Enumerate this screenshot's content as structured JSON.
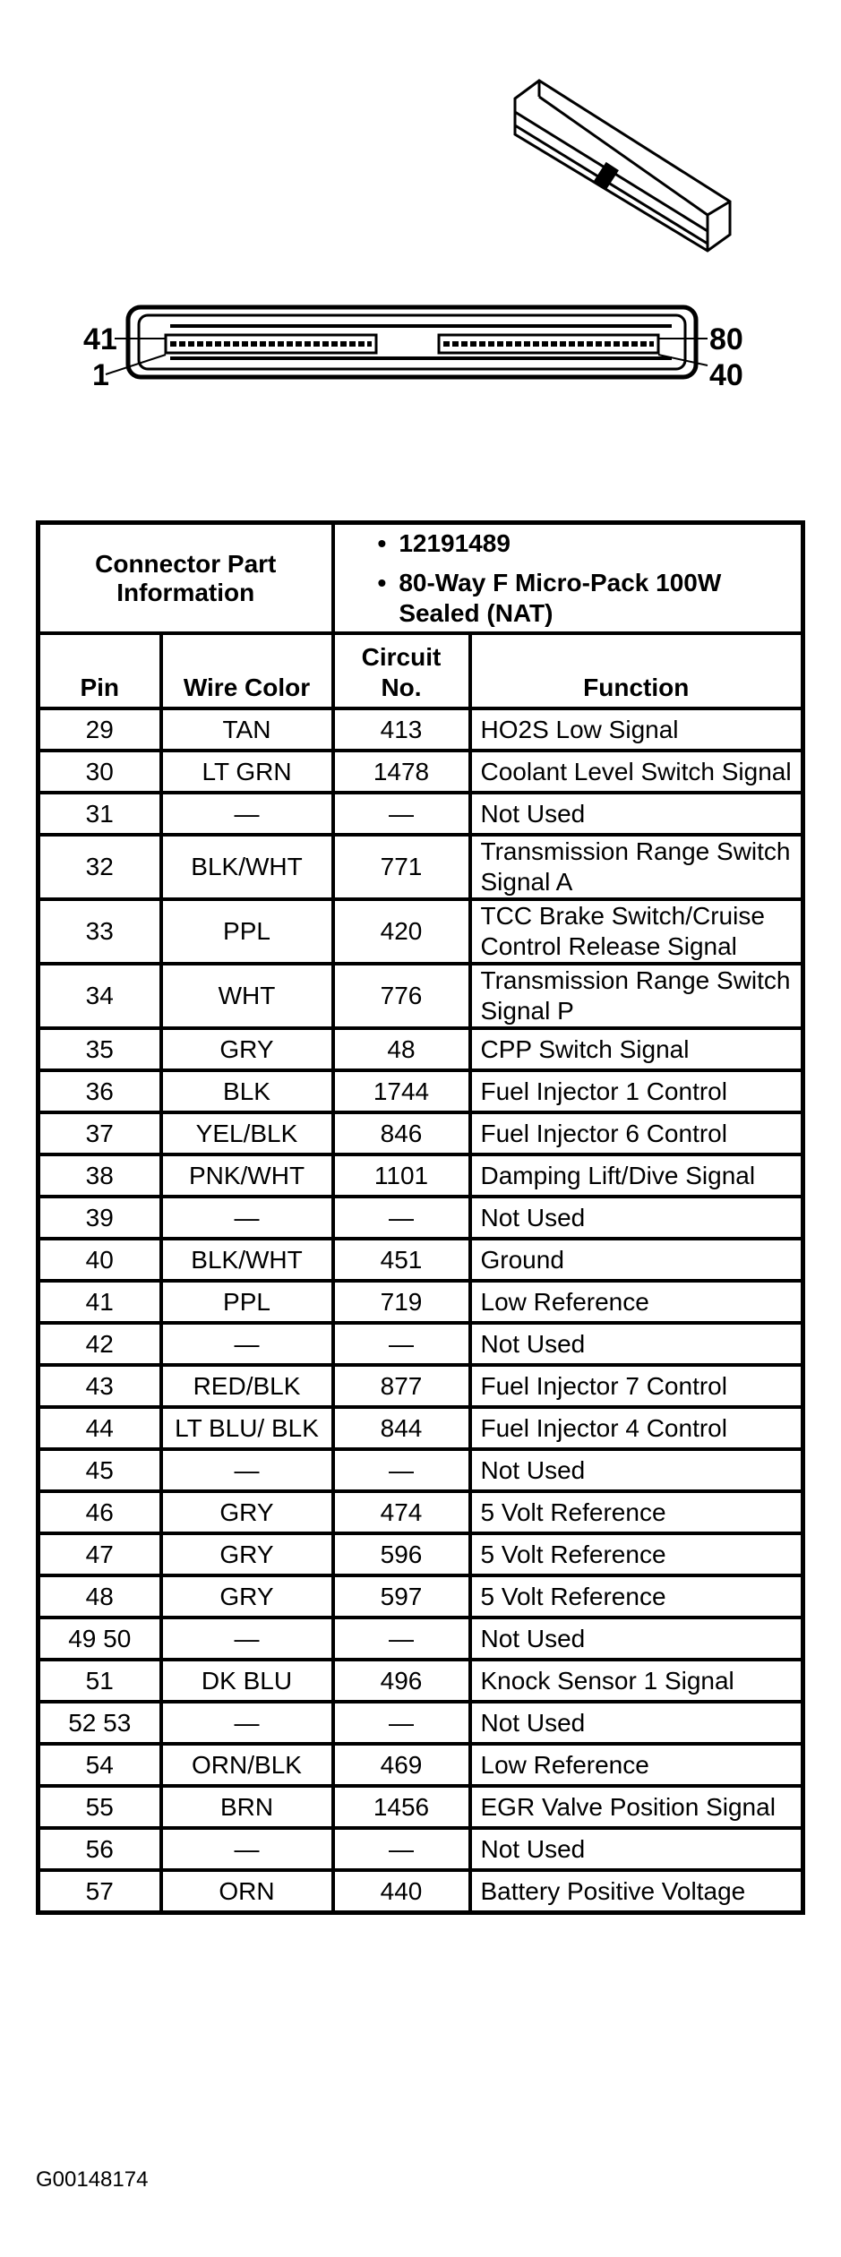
{
  "connector_labels": {
    "top_left": "41",
    "bottom_left": "1",
    "top_right": "80",
    "bottom_right": "40"
  },
  "info": {
    "label": "Connector Part Information",
    "bullets": [
      "12191489",
      "80-Way F Micro-Pack 100W Sealed (NAT)"
    ]
  },
  "columns": {
    "pin": "Pin",
    "wire": "Wire Color",
    "circuit": "Circuit No.",
    "function": "Function"
  },
  "rows": [
    {
      "pin": "29",
      "wire": "TAN",
      "circuit": "413",
      "function": "HO2S Low Signal"
    },
    {
      "pin": "30",
      "wire": "LT GRN",
      "circuit": "1478",
      "function": "Coolant Level Switch Signal"
    },
    {
      "pin": "31",
      "wire": "—",
      "circuit": "—",
      "function": "Not Used"
    },
    {
      "pin": "32",
      "wire": "BLK/WHT",
      "circuit": "771",
      "function": "Transmission Range Switch Signal A"
    },
    {
      "pin": "33",
      "wire": "PPL",
      "circuit": "420",
      "function": "TCC Brake Switch/Cruise Control Release Signal"
    },
    {
      "pin": "34",
      "wire": "WHT",
      "circuit": "776",
      "function": "Transmission Range Switch Signal P"
    },
    {
      "pin": "35",
      "wire": "GRY",
      "circuit": "48",
      "function": "CPP Switch Signal"
    },
    {
      "pin": "36",
      "wire": "BLK",
      "circuit": "1744",
      "function": "Fuel Injector 1 Control"
    },
    {
      "pin": "37",
      "wire": "YEL/BLK",
      "circuit": "846",
      "function": "Fuel Injector 6 Control"
    },
    {
      "pin": "38",
      "wire": "PNK/WHT",
      "circuit": "1101",
      "function": "Damping Lift/Dive Signal"
    },
    {
      "pin": "39",
      "wire": "—",
      "circuit": "—",
      "function": "Not Used"
    },
    {
      "pin": "40",
      "wire": "BLK/WHT",
      "circuit": "451",
      "function": "Ground"
    },
    {
      "pin": "41",
      "wire": "PPL",
      "circuit": "719",
      "function": "Low Reference"
    },
    {
      "pin": "42",
      "wire": "—",
      "circuit": "—",
      "function": "Not Used"
    },
    {
      "pin": "43",
      "wire": "RED/BLK",
      "circuit": "877",
      "function": "Fuel Injector 7 Control"
    },
    {
      "pin": "44",
      "wire": "LT BLU/ BLK",
      "circuit": "844",
      "function": "Fuel Injector 4 Control"
    },
    {
      "pin": "45",
      "wire": "—",
      "circuit": "—",
      "function": "Not Used"
    },
    {
      "pin": "46",
      "wire": "GRY",
      "circuit": "474",
      "function": "5 Volt Reference"
    },
    {
      "pin": "47",
      "wire": "GRY",
      "circuit": "596",
      "function": "5 Volt Reference"
    },
    {
      "pin": "48",
      "wire": "GRY",
      "circuit": "597",
      "function": "5 Volt Reference"
    },
    {
      "pin": "49 50",
      "wire": "—",
      "circuit": "—",
      "function": "Not Used"
    },
    {
      "pin": "51",
      "wire": "DK BLU",
      "circuit": "496",
      "function": "Knock Sensor 1 Signal"
    },
    {
      "pin": "52 53",
      "wire": "—",
      "circuit": "—",
      "function": "Not Used"
    },
    {
      "pin": "54",
      "wire": "ORN/BLK",
      "circuit": "469",
      "function": "Low Reference"
    },
    {
      "pin": "55",
      "wire": "BRN",
      "circuit": "1456",
      "function": "EGR Valve Position Signal"
    },
    {
      "pin": "56",
      "wire": "—",
      "circuit": "—",
      "function": "Not Used"
    },
    {
      "pin": "57",
      "wire": "ORN",
      "circuit": "440",
      "function": "Battery Positive Voltage"
    }
  ],
  "figure_code": "G00148174"
}
